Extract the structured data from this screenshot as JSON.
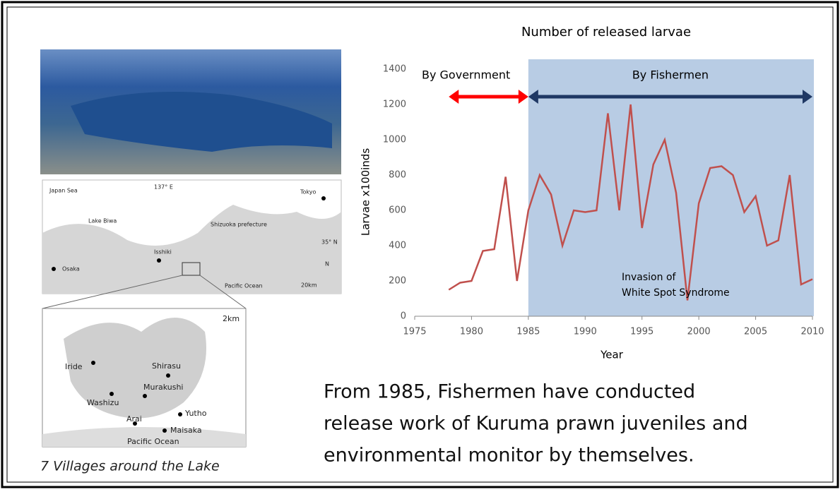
{
  "chart_data": {
    "type": "line",
    "title": "Number of released larvae",
    "x_label": "Year",
    "y_label": "Larvae x100inds",
    "x": [
      1978,
      1979,
      1980,
      1981,
      1982,
      1983,
      1984,
      1985,
      1986,
      1987,
      1988,
      1989,
      1990,
      1991,
      1992,
      1993,
      1994,
      1995,
      1996,
      1997,
      1998,
      1999,
      2000,
      2001,
      2002,
      2003,
      2004,
      2005,
      2006,
      2007,
      2008,
      2009,
      2010
    ],
    "values": [
      150,
      190,
      200,
      370,
      380,
      790,
      200,
      600,
      800,
      690,
      400,
      600,
      590,
      600,
      1150,
      600,
      1200,
      500,
      860,
      1000,
      700,
      90,
      640,
      840,
      850,
      800,
      590,
      680,
      400,
      430,
      800,
      180,
      210
    ],
    "color": "#c0504d",
    "xlim": [
      1975,
      2010
    ],
    "xticks": [
      1975,
      1980,
      1985,
      1990,
      1995,
      2000,
      2005,
      2010
    ],
    "ylim": [
      0,
      1400
    ],
    "yticks": [
      0,
      200,
      400,
      600,
      800,
      1000,
      1200,
      1400
    ],
    "shade": {
      "from": 1985,
      "to": 2010,
      "color": "#b8cce4"
    },
    "annotations": [
      {
        "text": "By Government",
        "from": 1978,
        "to": 1985,
        "color": "#ff0000"
      },
      {
        "text": "By Fishermen",
        "from": 1985,
        "to": 2010,
        "color": "#1f3864"
      }
    ],
    "note": [
      "Invasion of",
      "White Spot Syndrome"
    ]
  },
  "maps": {
    "overview": [
      "Japan Sea",
      "Lake Biwa",
      "Isshiki",
      "Shizuoka prefecture",
      "Osaka",
      "Tokyo",
      "Pacific Ocean",
      "137° E",
      "35° N",
      "20km",
      "N"
    ],
    "inset": [
      "Iride",
      "Shirasu",
      "Murakushi",
      "Washizu",
      "Yutho",
      "Arai",
      "Maisaka",
      "Pacific Ocean",
      "2km"
    ]
  },
  "caption": "7 Villages around the Lake",
  "body": [
    "From 1985, Fishermen have conducted",
    "release work of Kuruma prawn juveniles and",
    "environmental monitor by themselves."
  ]
}
